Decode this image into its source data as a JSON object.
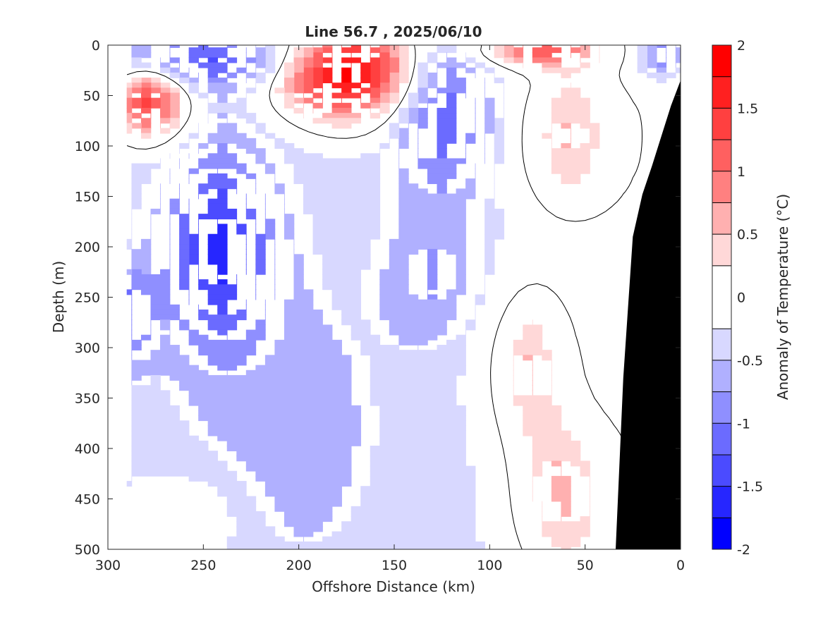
{
  "chart_data": {
    "type": "heatmap",
    "subtype": "filled-contour section",
    "title": "Line 56.7 , 2025/06/10",
    "xlabel": "Offshore Distance (km)",
    "ylabel": "Depth (m)",
    "colorbar_label": "Anomaly of Temperature (°C)",
    "xlim": [
      300,
      0
    ],
    "ylim": [
      500,
      0
    ],
    "x_reversed": true,
    "y_reversed": true,
    "xticks": [
      300,
      250,
      200,
      150,
      100,
      50,
      0
    ],
    "yticks": [
      0,
      50,
      100,
      150,
      200,
      250,
      300,
      350,
      400,
      450,
      500
    ],
    "colorbar_ticks": [
      2,
      1.5,
      1,
      0.5,
      0,
      -0.5,
      -1,
      -1.5,
      -2
    ],
    "contour_levels": [
      -2,
      -1.75,
      -1.5,
      -1.25,
      -1,
      -0.75,
      -0.5,
      -0.25,
      0.25,
      0.5,
      0.75,
      1,
      1.25,
      1.5,
      1.75,
      2
    ],
    "colormap": [
      {
        "range": [
          1.75,
          2
        ],
        "color": "#ff0000"
      },
      {
        "range": [
          1.5,
          1.75
        ],
        "color": "#ff2020"
      },
      {
        "range": [
          1.25,
          1.5
        ],
        "color": "#ff4040"
      },
      {
        "range": [
          1,
          1.25
        ],
        "color": "#ff6060"
      },
      {
        "range": [
          0.75,
          1
        ],
        "color": "#ff8080"
      },
      {
        "range": [
          0.5,
          0.75
        ],
        "color": "#ffb0b0"
      },
      {
        "range": [
          0.25,
          0.5
        ],
        "color": "#ffd8d8"
      },
      {
        "range": [
          -0.25,
          0.25
        ],
        "color": "#ffffff"
      },
      {
        "range": [
          -0.5,
          -0.25
        ],
        "color": "#d8d8ff"
      },
      {
        "range": [
          -0.75,
          -0.5
        ],
        "color": "#b0b0ff"
      },
      {
        "range": [
          -1,
          -0.75
        ],
        "color": "#8f8fff"
      },
      {
        "range": [
          -1.25,
          -1
        ],
        "color": "#6b6bff"
      },
      {
        "range": [
          -1.5,
          -1.25
        ],
        "color": "#4b4bff"
      },
      {
        "range": [
          -1.75,
          -1.5
        ],
        "color": "#2626ff"
      },
      {
        "range": [
          -2,
          -1.75
        ],
        "color": "#0000ff"
      }
    ],
    "zero_contour_color": "#000000",
    "bathymetry_color": "#000000",
    "data_xlim": [
      290,
      0
    ],
    "features": [
      {
        "region": "offshore surface warm core",
        "x": [
          190,
          145
        ],
        "depth": [
          0,
          60
        ],
        "max_anomaly": 1.6
      },
      {
        "region": "far offshore shallow warm patch",
        "x": [
          290,
          260
        ],
        "depth": [
          40,
          100
        ],
        "max_anomaly": 1.2
      },
      {
        "region": "deep cold core",
        "x": [
          270,
          220
        ],
        "depth": [
          150,
          280
        ],
        "min_anomaly": -1.5
      },
      {
        "region": "subsurface cold tongue",
        "x": [
          150,
          105
        ],
        "depth": [
          20,
          250
        ],
        "min_anomaly": -1.2
      },
      {
        "region": "nearshore weak warm patches",
        "x": [
          90,
          40
        ],
        "depth": [
          50,
          500
        ],
        "max_anomaly": 0.5
      }
    ],
    "grid": false,
    "legend": "colorbar-right"
  }
}
